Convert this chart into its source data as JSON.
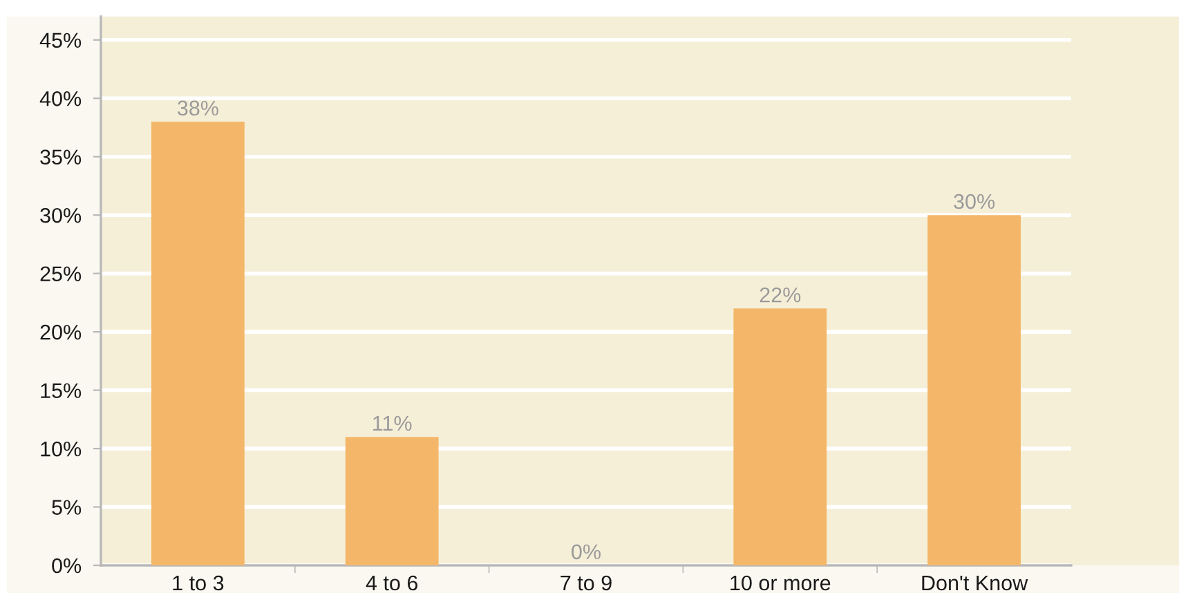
{
  "chart_data": {
    "type": "bar",
    "categories": [
      "1 to 3",
      "4 to 6",
      "7 to 9",
      "10 or more",
      "Don't Know"
    ],
    "values": [
      38,
      11,
      0,
      22,
      30
    ],
    "color": "#f4b76a",
    "value_labels": [
      "38%",
      "11%",
      "0%",
      "22%",
      "30%"
    ],
    "ylim": [
      0,
      47
    ],
    "yticks": [
      {
        "value": 0,
        "label": "0%"
      },
      {
        "value": 5,
        "label": "5%"
      },
      {
        "value": 10,
        "label": "10%"
      },
      {
        "value": 15,
        "label": "15%"
      },
      {
        "value": 20,
        "label": "20%"
      },
      {
        "value": 25,
        "label": "25%"
      },
      {
        "value": 30,
        "label": "30%"
      },
      {
        "value": 35,
        "label": "35%"
      },
      {
        "value": 40,
        "label": "40%"
      },
      {
        "value": 45,
        "label": "45%"
      }
    ],
    "grid": "y",
    "legend": false
  }
}
